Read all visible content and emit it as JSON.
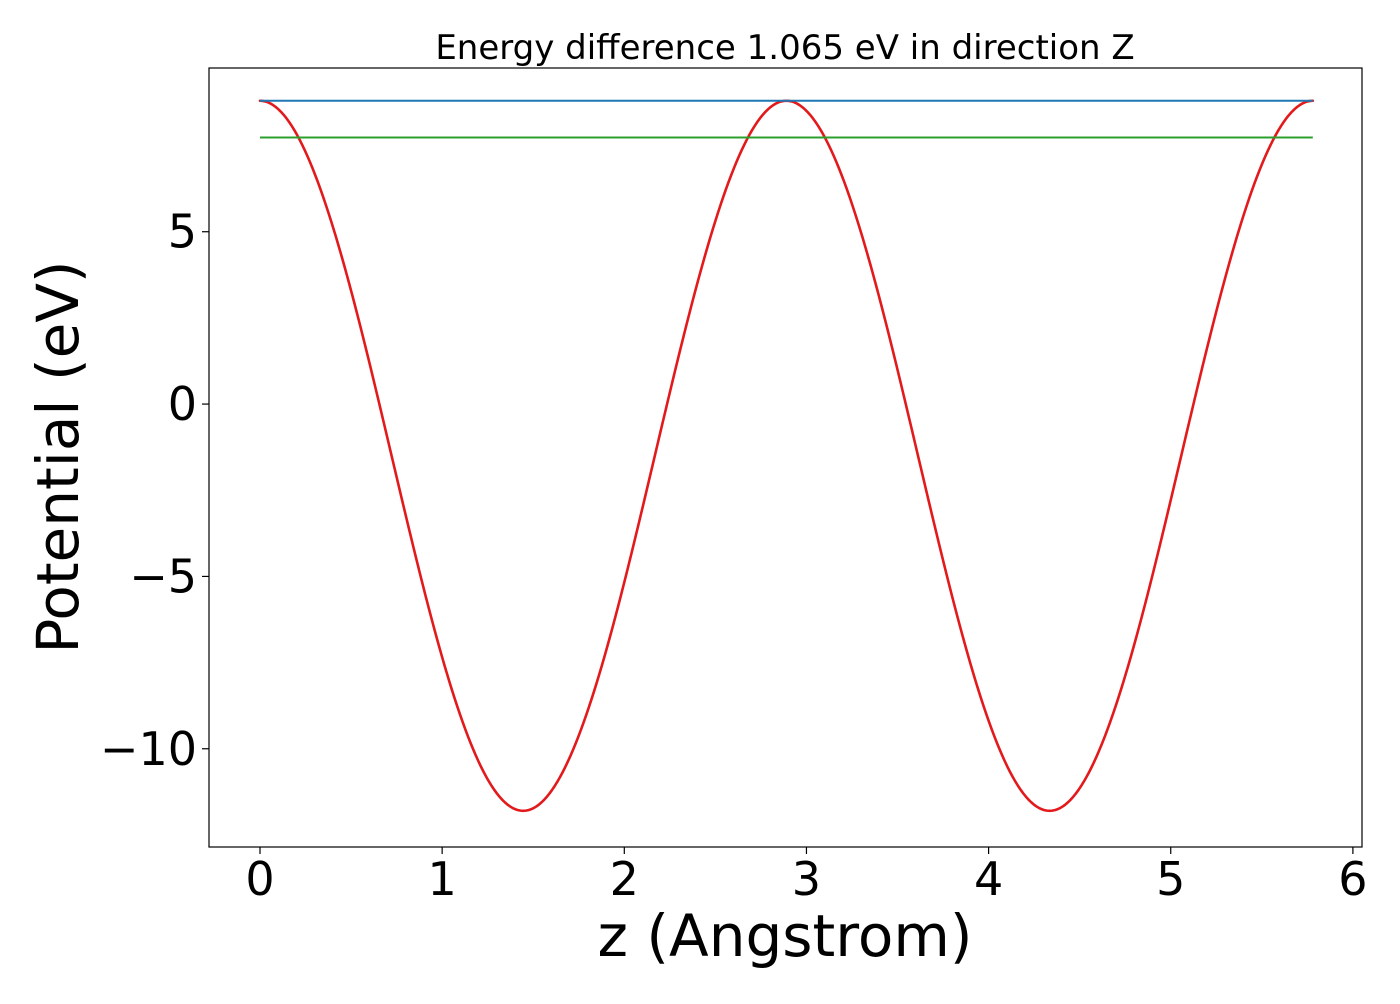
{
  "chart_data": {
    "type": "line",
    "title": "Energy difference 1.065 eV in direction Z",
    "xlabel": "z (Angstrom)",
    "ylabel": "Potential (eV)",
    "xlim": [
      -0.28,
      6.05
    ],
    "ylim": [
      -12.85,
      9.75
    ],
    "xticks": [
      0,
      1,
      2,
      3,
      4,
      5,
      6
    ],
    "xtick_labels": [
      "0",
      "1",
      "2",
      "3",
      "4",
      "5",
      "6"
    ],
    "yticks": [
      5,
      0,
      -5,
      -10
    ],
    "ytick_labels": [
      "5",
      "0",
      "−5",
      "−10"
    ],
    "grid": false,
    "series": [
      {
        "color": "#e31a1c",
        "style": "curve",
        "x_start": 0,
        "x_end": 5.78,
        "period": 2.89,
        "max": 8.8,
        "min": -11.8,
        "minima_x": [
          1.45,
          4.36
        ]
      },
      {
        "color": "#1f77b4",
        "style": "hline",
        "y": 8.8,
        "x_start": 0,
        "x_end": 5.78
      },
      {
        "color": "#2ca02c",
        "style": "hline",
        "y": 7.735,
        "x_start": 0,
        "x_end": 5.78
      }
    ]
  }
}
